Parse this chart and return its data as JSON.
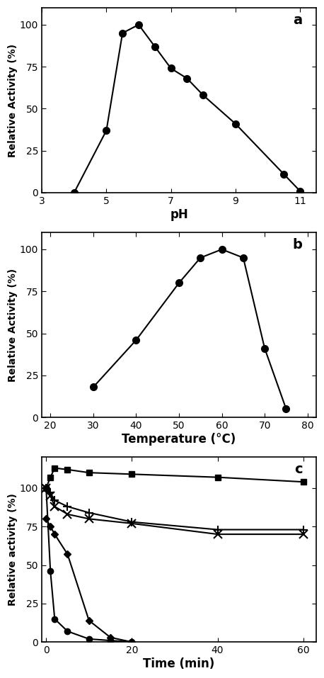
{
  "panel_a": {
    "label": "a",
    "x": [
      4,
      5,
      5.5,
      6,
      6.5,
      7,
      7.5,
      8,
      9,
      10.5,
      11
    ],
    "y": [
      0,
      37,
      95,
      100,
      87,
      74,
      68,
      58,
      41,
      11,
      1
    ],
    "xlabel": "pH",
    "ylabel": "Relative Activity (%)",
    "xlim": [
      3,
      11.5
    ],
    "xticks": [
      3,
      5,
      7,
      9,
      11
    ],
    "ylim": [
      0,
      110
    ],
    "yticks": [
      0,
      25,
      50,
      75,
      100
    ]
  },
  "panel_b": {
    "label": "b",
    "x": [
      30,
      40,
      50,
      55,
      60,
      65,
      70,
      75
    ],
    "y": [
      18,
      46,
      80,
      95,
      100,
      95,
      41,
      5
    ],
    "xlabel": "Temperature (°C)",
    "ylabel": "Relative Activity (%)",
    "xlim": [
      18,
      82
    ],
    "xticks": [
      20,
      30,
      40,
      50,
      60,
      70,
      80
    ],
    "ylim": [
      0,
      110
    ],
    "yticks": [
      0,
      25,
      50,
      75,
      100
    ]
  },
  "panel_c": {
    "label": "c",
    "xlabel": "Time (min)",
    "ylabel": "Relative activity (%)",
    "xlim": [
      -1,
      63
    ],
    "xticks": [
      0,
      20,
      40,
      60
    ],
    "ylim": [
      0,
      120
    ],
    "yticks": [
      0,
      25,
      50,
      75,
      100
    ],
    "series": [
      {
        "x": [
          0,
          1,
          2,
          5,
          10,
          20,
          40,
          60
        ],
        "y": [
          100,
          107,
          113,
          112,
          110,
          109,
          107,
          104
        ],
        "marker": "s",
        "linestyle": "-",
        "color": "#000000",
        "markersize": 6,
        "filled": true
      },
      {
        "x": [
          0,
          1,
          2,
          5,
          10,
          20,
          40,
          60
        ],
        "y": [
          100,
          97,
          92,
          88,
          84,
          78,
          73,
          73
        ],
        "marker": "+",
        "linestyle": "-",
        "color": "#000000",
        "markersize": 9,
        "filled": false
      },
      {
        "x": [
          0,
          1,
          2,
          5,
          10,
          20,
          40,
          60
        ],
        "y": [
          100,
          95,
          88,
          83,
          80,
          77,
          70,
          70
        ],
        "marker": "x",
        "linestyle": "-",
        "color": "#000000",
        "markersize": 8,
        "filled": false
      },
      {
        "x": [
          0,
          1,
          2,
          5,
          10,
          15,
          20
        ],
        "y": [
          80,
          75,
          70,
          57,
          14,
          3,
          0
        ],
        "marker": "D",
        "linestyle": "-",
        "color": "#000000",
        "markersize": 5,
        "filled": true
      },
      {
        "x": [
          0,
          1,
          2,
          5,
          10,
          15,
          20
        ],
        "y": [
          100,
          46,
          15,
          7,
          2,
          1,
          0
        ],
        "marker": "o",
        "linestyle": "-",
        "color": "#000000",
        "markersize": 6,
        "filled": true
      }
    ]
  },
  "line_color": "#000000",
  "marker_color": "#000000",
  "marker_size": 7,
  "line_width": 1.5
}
